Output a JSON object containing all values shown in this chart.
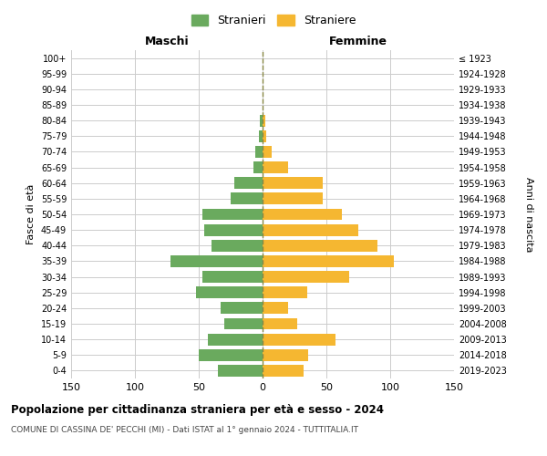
{
  "age_groups": [
    "0-4",
    "5-9",
    "10-14",
    "15-19",
    "20-24",
    "25-29",
    "30-34",
    "35-39",
    "40-44",
    "45-49",
    "50-54",
    "55-59",
    "60-64",
    "65-69",
    "70-74",
    "75-79",
    "80-84",
    "85-89",
    "90-94",
    "95-99",
    "100+"
  ],
  "birth_years": [
    "2019-2023",
    "2014-2018",
    "2009-2013",
    "2004-2008",
    "1999-2003",
    "1994-1998",
    "1989-1993",
    "1984-1988",
    "1979-1983",
    "1974-1978",
    "1969-1973",
    "1964-1968",
    "1959-1963",
    "1954-1958",
    "1949-1953",
    "1944-1948",
    "1939-1943",
    "1934-1938",
    "1929-1933",
    "1924-1928",
    "≤ 1923"
  ],
  "maschi": [
    35,
    50,
    43,
    30,
    33,
    52,
    47,
    72,
    40,
    46,
    47,
    25,
    22,
    7,
    6,
    3,
    2,
    0,
    0,
    0,
    0
  ],
  "femmine": [
    32,
    36,
    57,
    27,
    20,
    35,
    68,
    103,
    90,
    75,
    62,
    47,
    47,
    20,
    7,
    3,
    2,
    0,
    0,
    0,
    0
  ],
  "male_color": "#6aaa5e",
  "female_color": "#f5b731",
  "grid_color": "#cccccc",
  "dashed_line_color": "#888844",
  "title": "Popolazione per cittadinanza straniera per età e sesso - 2024",
  "subtitle": "COMUNE DI CASSINA DE' PECCHI (MI) - Dati ISTAT al 1° gennaio 2024 - TUTTITALIA.IT",
  "xlabel_left": "Maschi",
  "xlabel_right": "Femmine",
  "ylabel_left": "Fasce di età",
  "ylabel_right": "Anni di nascita",
  "legend_male": "Stranieri",
  "legend_female": "Straniere",
  "xlim": 150,
  "background_color": "#ffffff"
}
